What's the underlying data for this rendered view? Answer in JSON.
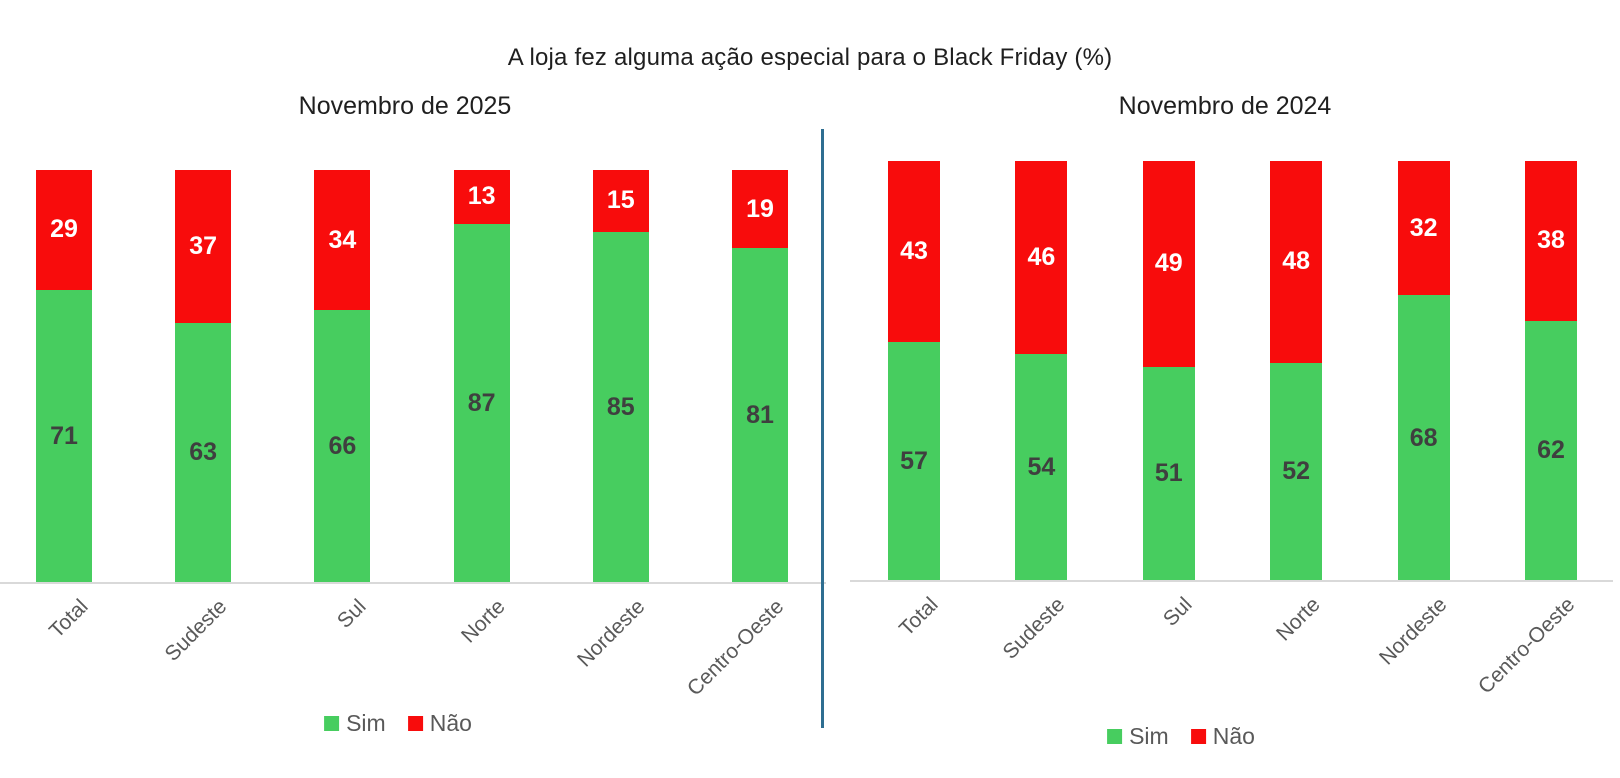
{
  "title": "A loja fez alguma ação especial para o Black Friday (%)",
  "legend": {
    "sim_label": "Sim",
    "nao_label": "Não"
  },
  "colors": {
    "sim": "#47CD5F",
    "nao": "#F80C0C",
    "divider": "#2E6E91",
    "axis_line": "#D9D9D9",
    "category_label": "#595959",
    "legend_text": "#595959",
    "value_label_on_sim": "#3F3F3F",
    "value_label_on_nao": "#FFFFFF",
    "title_text": "#1F1F1F"
  },
  "chart_data": [
    {
      "type": "bar",
      "stacked": true,
      "units": "percent",
      "title": "Novembro de 2025",
      "categories": [
        "Total",
        "Sudeste",
        "Sul",
        "Norte",
        "Nordeste",
        "Centro-Oeste"
      ],
      "series": [
        {
          "name": "Sim",
          "values": [
            71,
            63,
            66,
            87,
            85,
            81
          ]
        },
        {
          "name": "Não",
          "values": [
            29,
            37,
            34,
            13,
            15,
            19
          ]
        }
      ],
      "ylim": [
        0,
        100
      ],
      "grid": false,
      "legend_position": "bottom"
    },
    {
      "type": "bar",
      "stacked": true,
      "units": "percent",
      "title": "Novembro de 2024",
      "categories": [
        "Total",
        "Sudeste",
        "Sul",
        "Norte",
        "Nordeste",
        "Centro-Oeste"
      ],
      "series": [
        {
          "name": "Sim",
          "values": [
            57,
            54,
            51,
            52,
            68,
            62
          ]
        },
        {
          "name": "Não",
          "values": [
            43,
            46,
            49,
            48,
            32,
            38
          ]
        }
      ],
      "ylim": [
        0,
        100
      ],
      "grid": false,
      "legend_position": "bottom"
    }
  ]
}
